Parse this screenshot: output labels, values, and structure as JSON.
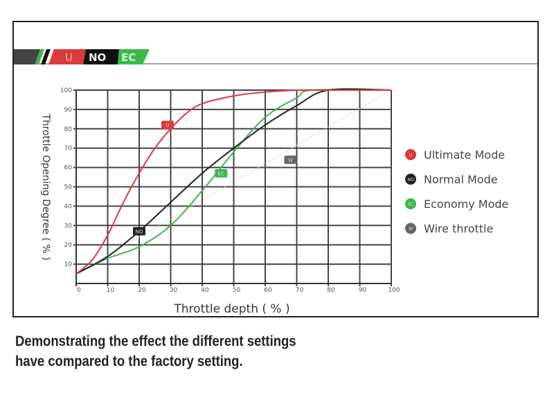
{
  "banner": {
    "u": "U",
    "no": "NO",
    "ec": "EC"
  },
  "caption": {
    "line1": "Demonstrating the effect the different settings",
    "line2": "have compared to the factory setting."
  },
  "chart_data": {
    "type": "line",
    "xlabel": "Throttle depth ( % )",
    "ylabel": "Throttle Opening Degree ( % )",
    "xlim": [
      0,
      100
    ],
    "ylim": [
      0,
      100
    ],
    "xticks": [
      0,
      10,
      20,
      30,
      40,
      50,
      60,
      70,
      80,
      90,
      100
    ],
    "yticks": [
      10,
      20,
      30,
      40,
      50,
      60,
      70,
      80,
      90,
      100
    ],
    "grid": true,
    "legend_placement": "right",
    "series": [
      {
        "name": "Ultimate Mode",
        "badge": "U",
        "color": "#d93a3a",
        "badge_at": [
          29,
          82
        ],
        "x": [
          0,
          5,
          10,
          15,
          20,
          25,
          30,
          35,
          40,
          50,
          60,
          70,
          80,
          100
        ],
        "y": [
          5,
          12,
          25,
          42,
          57,
          70,
          80,
          88,
          93,
          97,
          99,
          100,
          100,
          100
        ]
      },
      {
        "name": "Normal Mode",
        "badge": "NO",
        "color": "#222222",
        "badge_at": [
          20,
          27
        ],
        "x": [
          0,
          10,
          20,
          30,
          40,
          50,
          60,
          70,
          80,
          100
        ],
        "y": [
          5,
          14,
          27,
          42,
          57,
          70,
          82,
          92,
          100,
          100
        ]
      },
      {
        "name": "Economy Mode",
        "badge": "EC",
        "color": "#3cb84a",
        "badge_at": [
          46,
          57
        ],
        "x": [
          0,
          10,
          20,
          30,
          40,
          50,
          60,
          70,
          75,
          100
        ],
        "y": [
          5,
          13,
          19,
          30,
          48,
          68,
          86,
          96,
          100,
          100
        ]
      },
      {
        "name": "Wire throttle",
        "badge": "W",
        "color": "#cccccc",
        "badge_at": [
          68,
          64
        ],
        "dotted": true,
        "x": [
          0,
          100
        ],
        "y": [
          5,
          100
        ]
      }
    ]
  }
}
